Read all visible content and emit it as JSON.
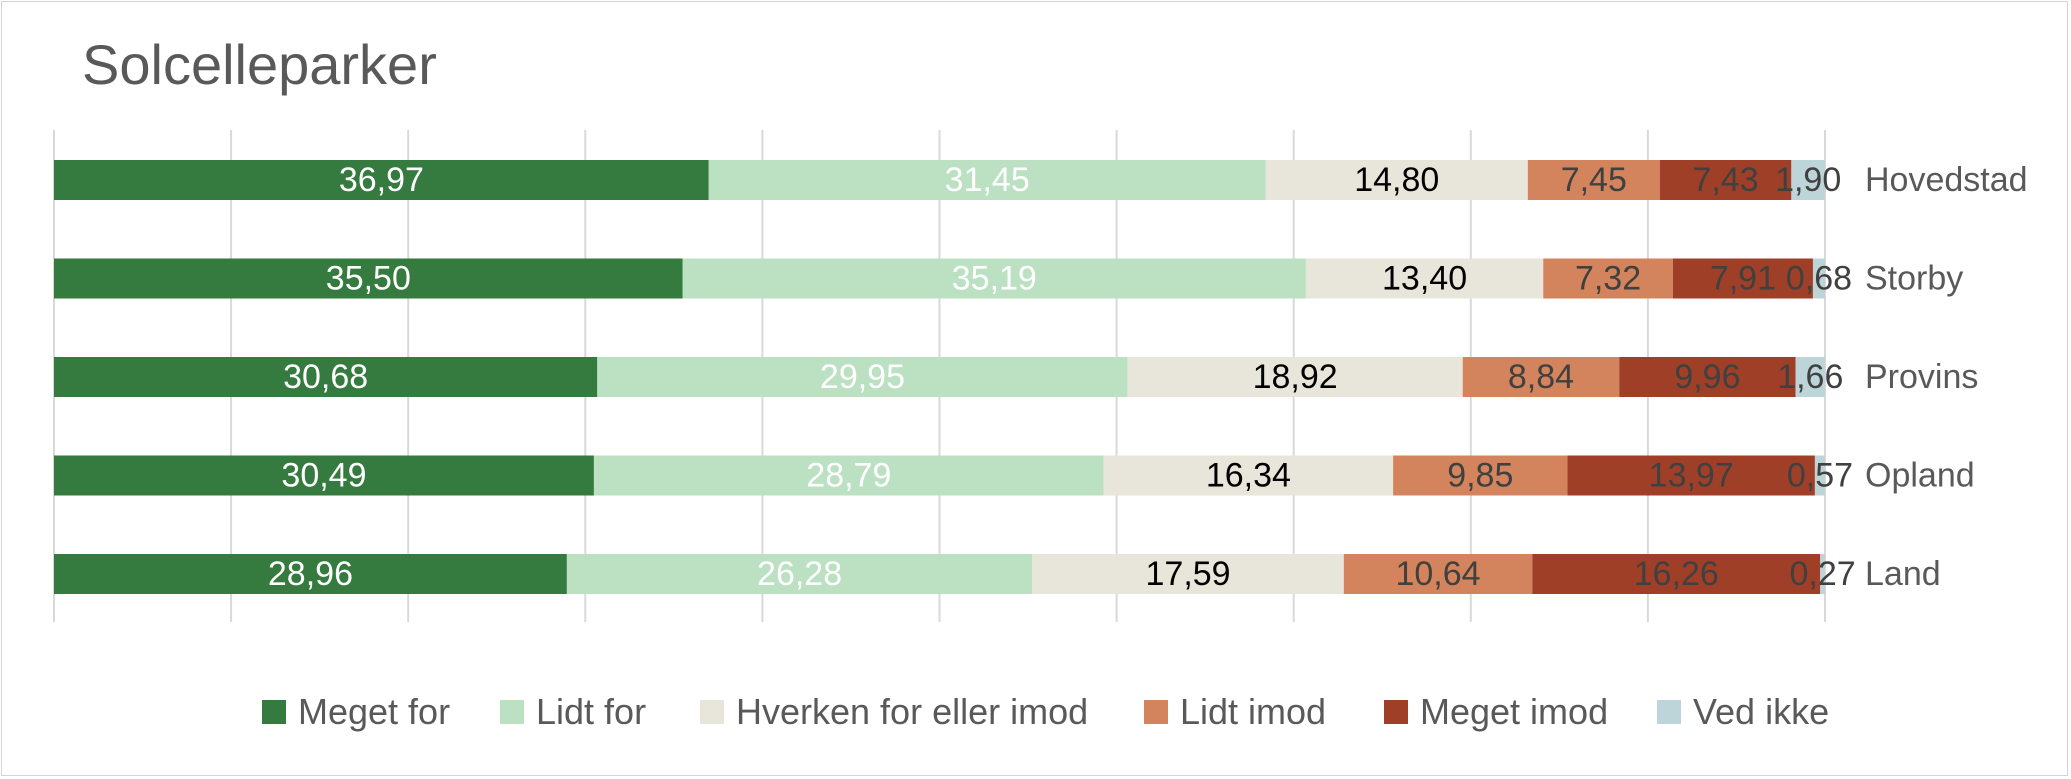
{
  "chart_data": {
    "type": "bar",
    "orientation": "horizontal",
    "stacked": true,
    "title": "Solcelleparker",
    "categories": [
      "Hovedstad",
      "Storby",
      "Provins",
      "Opland",
      "Land"
    ],
    "series": [
      {
        "name": "Meget for",
        "color": "#357A3E",
        "label_color": "#FFFFFF",
        "values": [
          36.97,
          35.5,
          30.68,
          30.49,
          28.96
        ],
        "labels": [
          "36,97",
          "35,50",
          "30,68",
          "30,49",
          "28,96"
        ]
      },
      {
        "name": "Lidt for",
        "color": "#BCE1C2",
        "label_color": "#FFFFFF",
        "values": [
          31.45,
          35.19,
          29.95,
          28.79,
          26.28
        ],
        "labels": [
          "31,45",
          "35,19",
          "29,95",
          "28,79",
          "26,28"
        ]
      },
      {
        "name": "Hverken for eller imod",
        "color": "#E8E5DA",
        "label_color": "#000000",
        "values": [
          14.8,
          13.4,
          18.92,
          16.34,
          17.59
        ],
        "labels": [
          "14,80",
          "13,40",
          "18,92",
          "16,34",
          "17,59"
        ]
      },
      {
        "name": "Lidt imod",
        "color": "#D4845C",
        "label_color": "#404040",
        "values": [
          7.45,
          7.32,
          8.84,
          9.85,
          10.64
        ],
        "labels": [
          "7,45",
          "7,32",
          "8,84",
          "9,85",
          "10,64"
        ]
      },
      {
        "name": "Meget imod",
        "color": "#A03F27",
        "label_color": "#404040",
        "values": [
          7.43,
          7.91,
          9.96,
          13.97,
          16.26
        ],
        "labels": [
          "7,43",
          "7,91",
          "9,96",
          "13,97",
          "16,26"
        ]
      },
      {
        "name": "Ved ikke",
        "color": "#BDD5D9",
        "label_color": "#404040",
        "values": [
          1.9,
          0.68,
          1.66,
          0.57,
          0.27
        ],
        "labels": [
          "1,90",
          "0,68",
          "1,66",
          "0,57",
          "0,27"
        ]
      }
    ],
    "xlim": [
      0,
      100
    ],
    "grid": true,
    "legend": "bottom",
    "category_labels_position": "right"
  }
}
